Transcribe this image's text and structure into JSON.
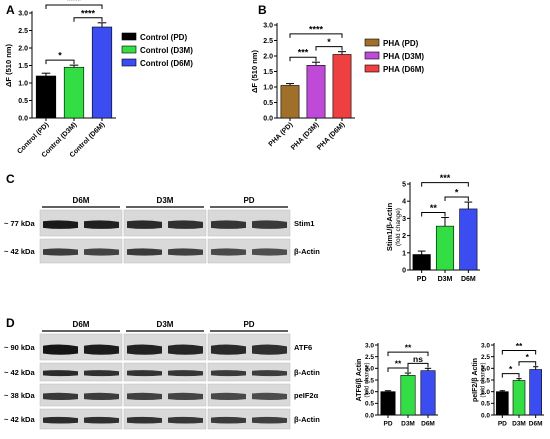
{
  "panels": {
    "A": {
      "letter": "A",
      "chart_data": {
        "type": "bar",
        "categories": [
          "Control (PD)",
          "Control (D3M)",
          "Control (D6M)"
        ],
        "values": [
          1.2,
          1.45,
          2.6
        ],
        "errors": [
          0.08,
          0.06,
          0.12
        ],
        "colors": [
          "#000000",
          "#33dd44",
          "#3b4cf0"
        ],
        "ylabel": "ΔF (510 nm)",
        "ylim": [
          0,
          3
        ],
        "yticks": [
          "0.0",
          "0.5",
          "1.0",
          "1.5",
          "2.0",
          "2.5",
          "3.0"
        ],
        "legend": [
          "Control (PD)",
          "Control (D3M)",
          "Control (D6M)"
        ],
        "legend_position": "right",
        "significance": [
          {
            "from": 0,
            "to": 1,
            "label": "*"
          },
          {
            "from": 1,
            "to": 2,
            "label": "****"
          },
          {
            "from": 0,
            "to": 2,
            "label": "****"
          }
        ]
      }
    },
    "B": {
      "letter": "B",
      "chart_data": {
        "type": "bar",
        "categories": [
          "PHA (PD)",
          "PHA (D3M)",
          "PHA (D6M)"
        ],
        "values": [
          1.05,
          1.7,
          2.05
        ],
        "errors": [
          0.06,
          0.1,
          0.09
        ],
        "colors": [
          "#a0702a",
          "#c04ad8",
          "#ee4040"
        ],
        "ylabel": "ΔF (510 nm)",
        "ylim": [
          0,
          3
        ],
        "yticks": [
          "0.0",
          "0.5",
          "1.0",
          "1.5",
          "2.0",
          "2.5",
          "3.0"
        ],
        "legend": [
          "PHA (PD)",
          "PHA (D3M)",
          "PHA (D6M)"
        ],
        "legend_position": "right",
        "significance": [
          {
            "from": 0,
            "to": 1,
            "label": "***"
          },
          {
            "from": 1,
            "to": 2,
            "label": "*"
          },
          {
            "from": 0,
            "to": 2,
            "label": "****"
          }
        ]
      }
    },
    "C": {
      "letter": "C",
      "blot": {
        "groups": [
          "D6M",
          "D3M",
          "PD"
        ],
        "kda": [
          "~ 77 kDa",
          "~ 42 kDa"
        ],
        "proteins": [
          "Stim1",
          "β-Actin"
        ]
      },
      "chart_data": {
        "type": "bar",
        "categories": [
          "PD",
          "D3M",
          "D6M"
        ],
        "values": [
          0.9,
          2.55,
          3.55
        ],
        "errors": [
          0.2,
          0.5,
          0.4
        ],
        "colors": [
          "#000000",
          "#33dd44",
          "#3b4cf0"
        ],
        "ylabel": "Stim1/β-Actin",
        "ylabel2": "(fold change)",
        "ylim": [
          0,
          5
        ],
        "yticks": [
          "0",
          "1",
          "2",
          "3",
          "4",
          "5"
        ],
        "significance": [
          {
            "from": 0,
            "to": 1,
            "label": "**"
          },
          {
            "from": 1,
            "to": 2,
            "label": "*"
          },
          {
            "from": 0,
            "to": 2,
            "label": "***"
          }
        ]
      }
    },
    "D": {
      "letter": "D",
      "blot": {
        "groups": [
          "D6M",
          "D3M",
          "PD"
        ],
        "kda": [
          "~ 90 kDa",
          "~ 42 kDa",
          "~ 38 kDa",
          "~ 42 kDa"
        ],
        "proteins": [
          "ATF6",
          "β-Actin",
          "peIF2α",
          "β-Actin"
        ]
      },
      "chart_atf6": {
        "type": "bar",
        "categories": [
          "PD",
          "D3M",
          "D6M"
        ],
        "values": [
          1.0,
          1.7,
          1.9
        ],
        "errors": [
          0.04,
          0.1,
          0.1
        ],
        "colors": [
          "#000000",
          "#33dd44",
          "#3b4cf0"
        ],
        "ylabel": "ATF6/β Actin",
        "ylabel2": "(fold change)",
        "ylim": [
          0,
          3
        ],
        "yticks": [
          "0.0",
          "0.5",
          "1.0",
          "1.5",
          "2.0",
          "2.5",
          "3.0"
        ],
        "significance": [
          {
            "from": 0,
            "to": 1,
            "label": "**"
          },
          {
            "from": 1,
            "to": 2,
            "label": "ns"
          },
          {
            "from": 0,
            "to": 2,
            "label": "**"
          }
        ]
      },
      "chart_peif2a": {
        "type": "bar",
        "categories": [
          "PD",
          "D3M",
          "D6M"
        ],
        "values": [
          1.0,
          1.48,
          1.95
        ],
        "errors": [
          0.04,
          0.08,
          0.12
        ],
        "colors": [
          "#000000",
          "#33dd44",
          "#3b4cf0"
        ],
        "ylabel": "peIF2/β Actin",
        "ylabel2": "(fold change)",
        "ylim": [
          0,
          3
        ],
        "yticks": [
          "0.0",
          "0.5",
          "1.0",
          "1.5",
          "2.0",
          "2.5",
          "3.0"
        ],
        "significance": [
          {
            "from": 0,
            "to": 1,
            "label": "*"
          },
          {
            "from": 1,
            "to": 2,
            "label": "*"
          },
          {
            "from": 0,
            "to": 2,
            "label": "**"
          }
        ]
      }
    }
  }
}
